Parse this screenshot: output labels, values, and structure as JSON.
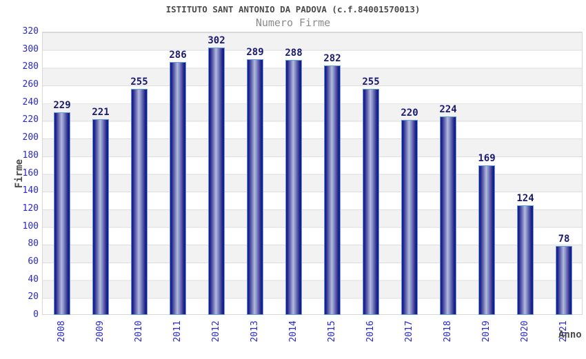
{
  "header": {
    "title": "ISTITUTO SANT ANTONIO DA PADOVA (c.f.84001570013)",
    "subtitle": "Numero Firme"
  },
  "chart_data": {
    "type": "bar",
    "title": "ISTITUTO SANT ANTONIO DA PADOVA (c.f.84001570013)",
    "subtitle": "Numero Firme",
    "xlabel": "Anno",
    "ylabel": "Firme",
    "categories": [
      "2008",
      "2009",
      "2010",
      "2011",
      "2012",
      "2013",
      "2014",
      "2015",
      "2016",
      "2017",
      "2018",
      "2019",
      "2020",
      "2021"
    ],
    "values": [
      229,
      221,
      255,
      286,
      302,
      289,
      288,
      282,
      255,
      220,
      224,
      169,
      124,
      78
    ],
    "ylim": [
      0,
      320
    ],
    "ytick_step": 20,
    "grid": true,
    "plot_bands": "alternating-gray-white",
    "legend": "none",
    "colors": {
      "tick_labels": "#2828cc",
      "value_labels": "#191970",
      "bar_edge": "#15157d",
      "bar_highlight": "#b4badf",
      "bar_border": "#5f9de0",
      "band_gray": "#f2f2f2",
      "grid_line": "#dcdcdc",
      "title_text": "#4a4a4a",
      "subtitle_text": "#8a8a8a"
    }
  }
}
